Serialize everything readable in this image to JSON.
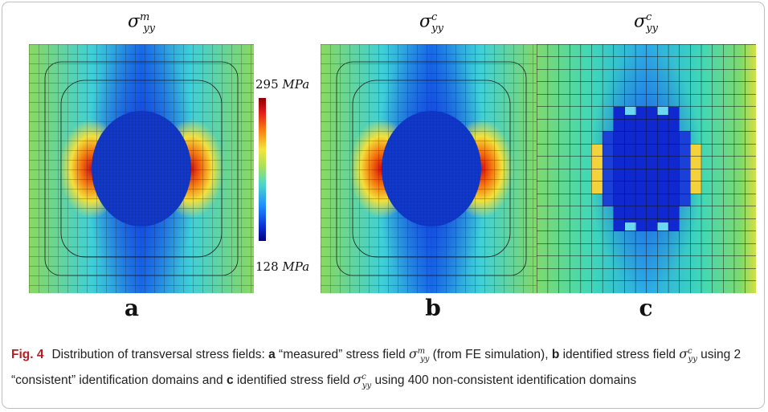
{
  "panels": [
    {
      "id": "a",
      "title_base": "σ",
      "title_sub": "yy",
      "title_sup": "m",
      "letter": "a"
    },
    {
      "id": "b",
      "title_base": "σ",
      "title_sub": "yy",
      "title_sup": "c",
      "letter": "b"
    },
    {
      "id": "c",
      "title_base": "σ",
      "title_sub": "yy",
      "title_sup": "c",
      "letter": "c"
    }
  ],
  "colorbar": {
    "max_value": "295",
    "min_value": "128",
    "unit": "MPa"
  },
  "caption": {
    "fig_label": "Fig. 4",
    "intro": "Distribution of transversal stress fields: ",
    "a_label": "a",
    "a_text_1": " “measured” stress field ",
    "a_text_2": " (from FE simulation), ",
    "b_label": "b",
    "b_text_1": " identified stress field ",
    "b_text_2": " using 2 “consistent” identification domains and ",
    "c_label": "c",
    "c_text_1": " identified stress field ",
    "c_text_2": " using 400 non-consistent identification domains",
    "sym_base": "σ",
    "sym_sub": "yy",
    "sym_sup_m": "m",
    "sym_sup_c": "c"
  }
}
